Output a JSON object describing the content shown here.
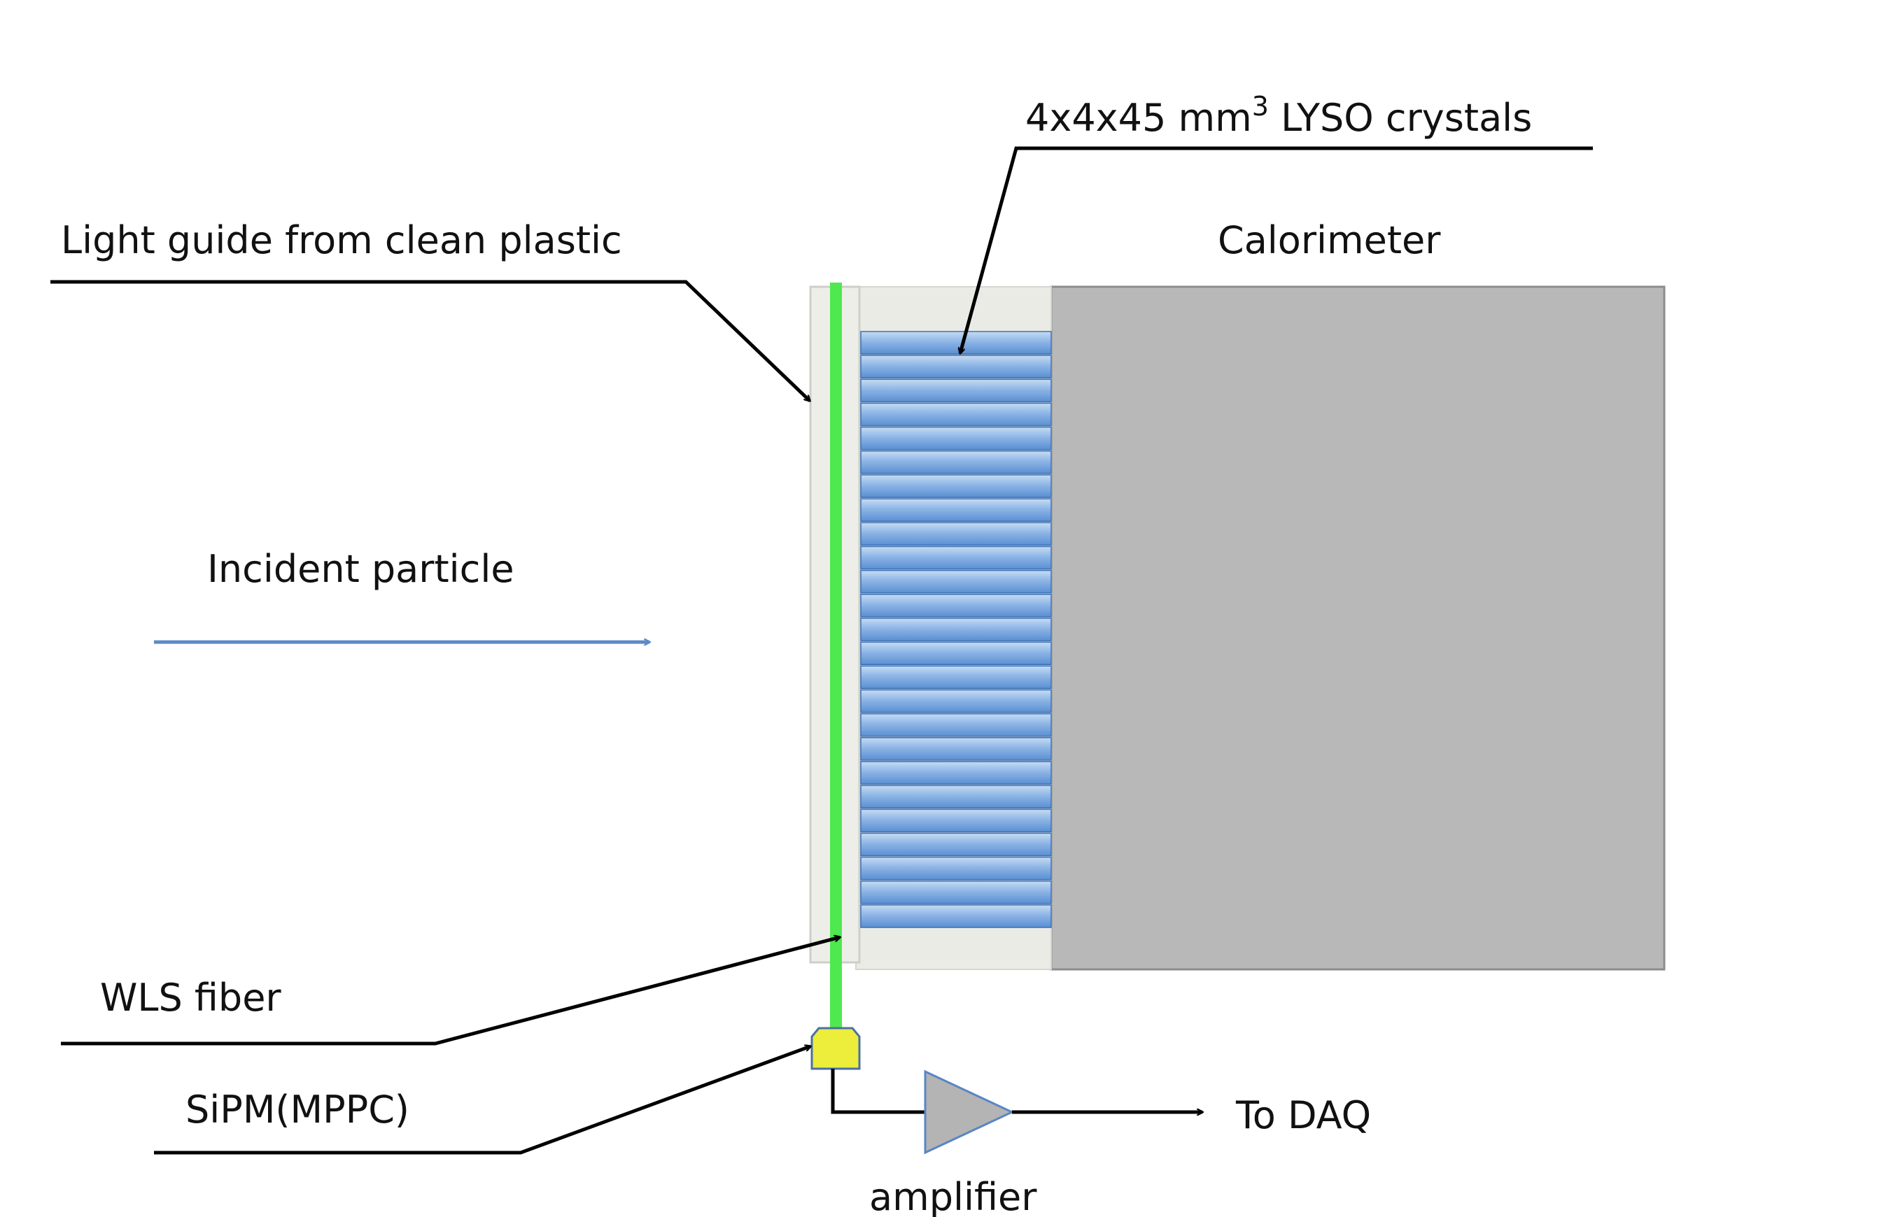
{
  "labels": {
    "lyso_base": "4x4x45 mm",
    "lyso_sup": "3",
    "lyso_rest": " LYSO crystals",
    "light_guide": "Light guide from clean plastic",
    "calorimeter": "Calorimeter",
    "incident_particle": "Incident particle",
    "wls_fiber": "WLS fiber",
    "sipm": "SiPM(MPPC)",
    "to_daq": "To DAQ",
    "amplifier": "amplifier"
  },
  "crystal_count": 25,
  "colors": {
    "calorimeter_fill": "#b8b8b8",
    "calorimeter_stroke": "#8c8c8c",
    "housing_fill": "#ebebe6",
    "crystal_light": "#c6dcf3",
    "crystal_dark": "#5a8fd2",
    "crystal_edge": "#3d70b3",
    "fiber": "#4fe84f",
    "sipm_fill": "#eded3c",
    "sipm_stroke": "#4a6fa5",
    "amplifier_fill": "#b4b4b4",
    "amplifier_stroke": "#5a86c3",
    "particle_arrow": "#5b8ac7",
    "leader": "#000000"
  }
}
